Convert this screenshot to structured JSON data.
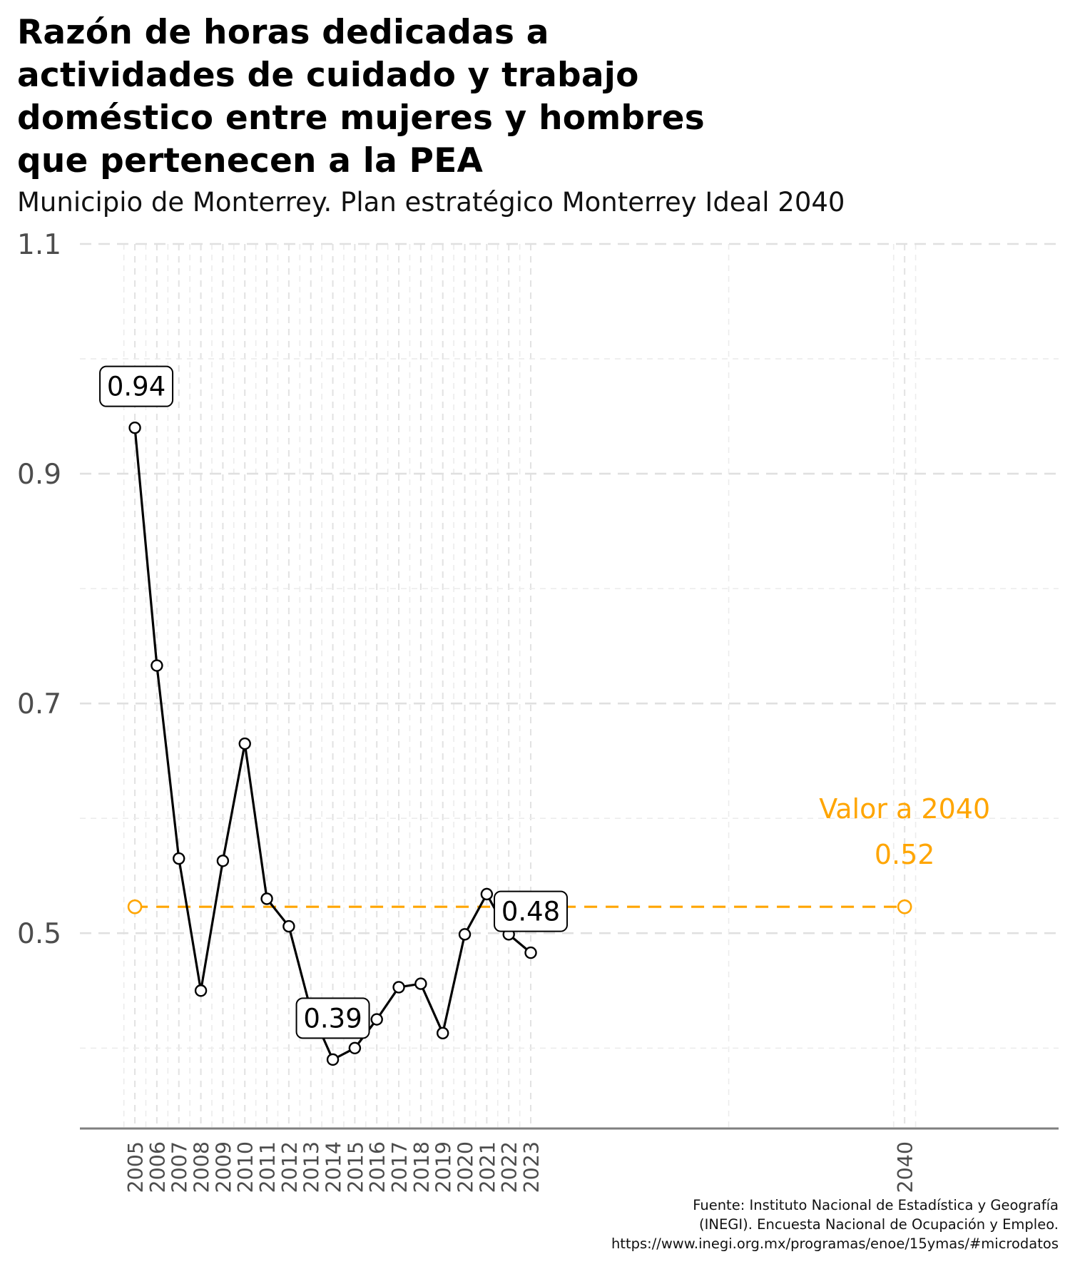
{
  "chart_data": {
    "type": "line",
    "title": "Razón de horas dedicadas a actividades de cuidado y trabajo doméstico entre mujeres y hombres que pertenecen a la PEA",
    "title_lines": [
      "Razón de horas dedicadas a",
      "actividades de cuidado y trabajo",
      "doméstico entre mujeres y hombres",
      "que pertenecen a la PEA"
    ],
    "subtitle": "Municipio de Monterrey. Plan estratégico Monterrey Ideal 2040",
    "caption_lines": [
      "Fuente: Instituto Nacional de Estadística y Geografía",
      "(INEGI). Encuesta Nacional de Ocupación y Empleo.",
      "https://www.inegi.org.mx/programas/enoe/15ymas/#microdatos"
    ],
    "xlabel": "",
    "ylabel": "",
    "x": [
      2005,
      2006,
      2007,
      2008,
      2009,
      2010,
      2011,
      2012,
      2013,
      2014,
      2015,
      2016,
      2017,
      2018,
      2019,
      2020,
      2021,
      2022,
      2023
    ],
    "series": [
      {
        "values": [
          0.94,
          0.733,
          0.565,
          0.45,
          0.563,
          0.665,
          0.53,
          0.506,
          0.433,
          0.39,
          0.4,
          0.425,
          0.453,
          0.456,
          0.413,
          0.499,
          0.534,
          0.499,
          0.483
        ],
        "color": "#000000"
      }
    ],
    "target": {
      "label": "Valor a 2040",
      "value_label": "0.52",
      "value": 0.523,
      "x_start": 2005,
      "x_end": 2040,
      "color": "#FFA500"
    },
    "point_labels": [
      {
        "x": 2005,
        "text": "0.94"
      },
      {
        "x": 2014,
        "text": "0.39"
      },
      {
        "x": 2023,
        "text": "0.48"
      }
    ],
    "x_ticks": [
      2005,
      2006,
      2007,
      2008,
      2009,
      2010,
      2011,
      2012,
      2013,
      2014,
      2015,
      2016,
      2017,
      2018,
      2019,
      2020,
      2021,
      2022,
      2023,
      2040
    ],
    "y_ticks": [
      0.5,
      0.7,
      0.9,
      1.1
    ],
    "y_tick_labels": [
      "0.5",
      "0.7",
      "0.9",
      "1.1"
    ],
    "ylim": [
      0.33,
      1.1
    ],
    "xlim": [
      2002.5,
      2047
    ],
    "grid": true,
    "legend": "none"
  }
}
